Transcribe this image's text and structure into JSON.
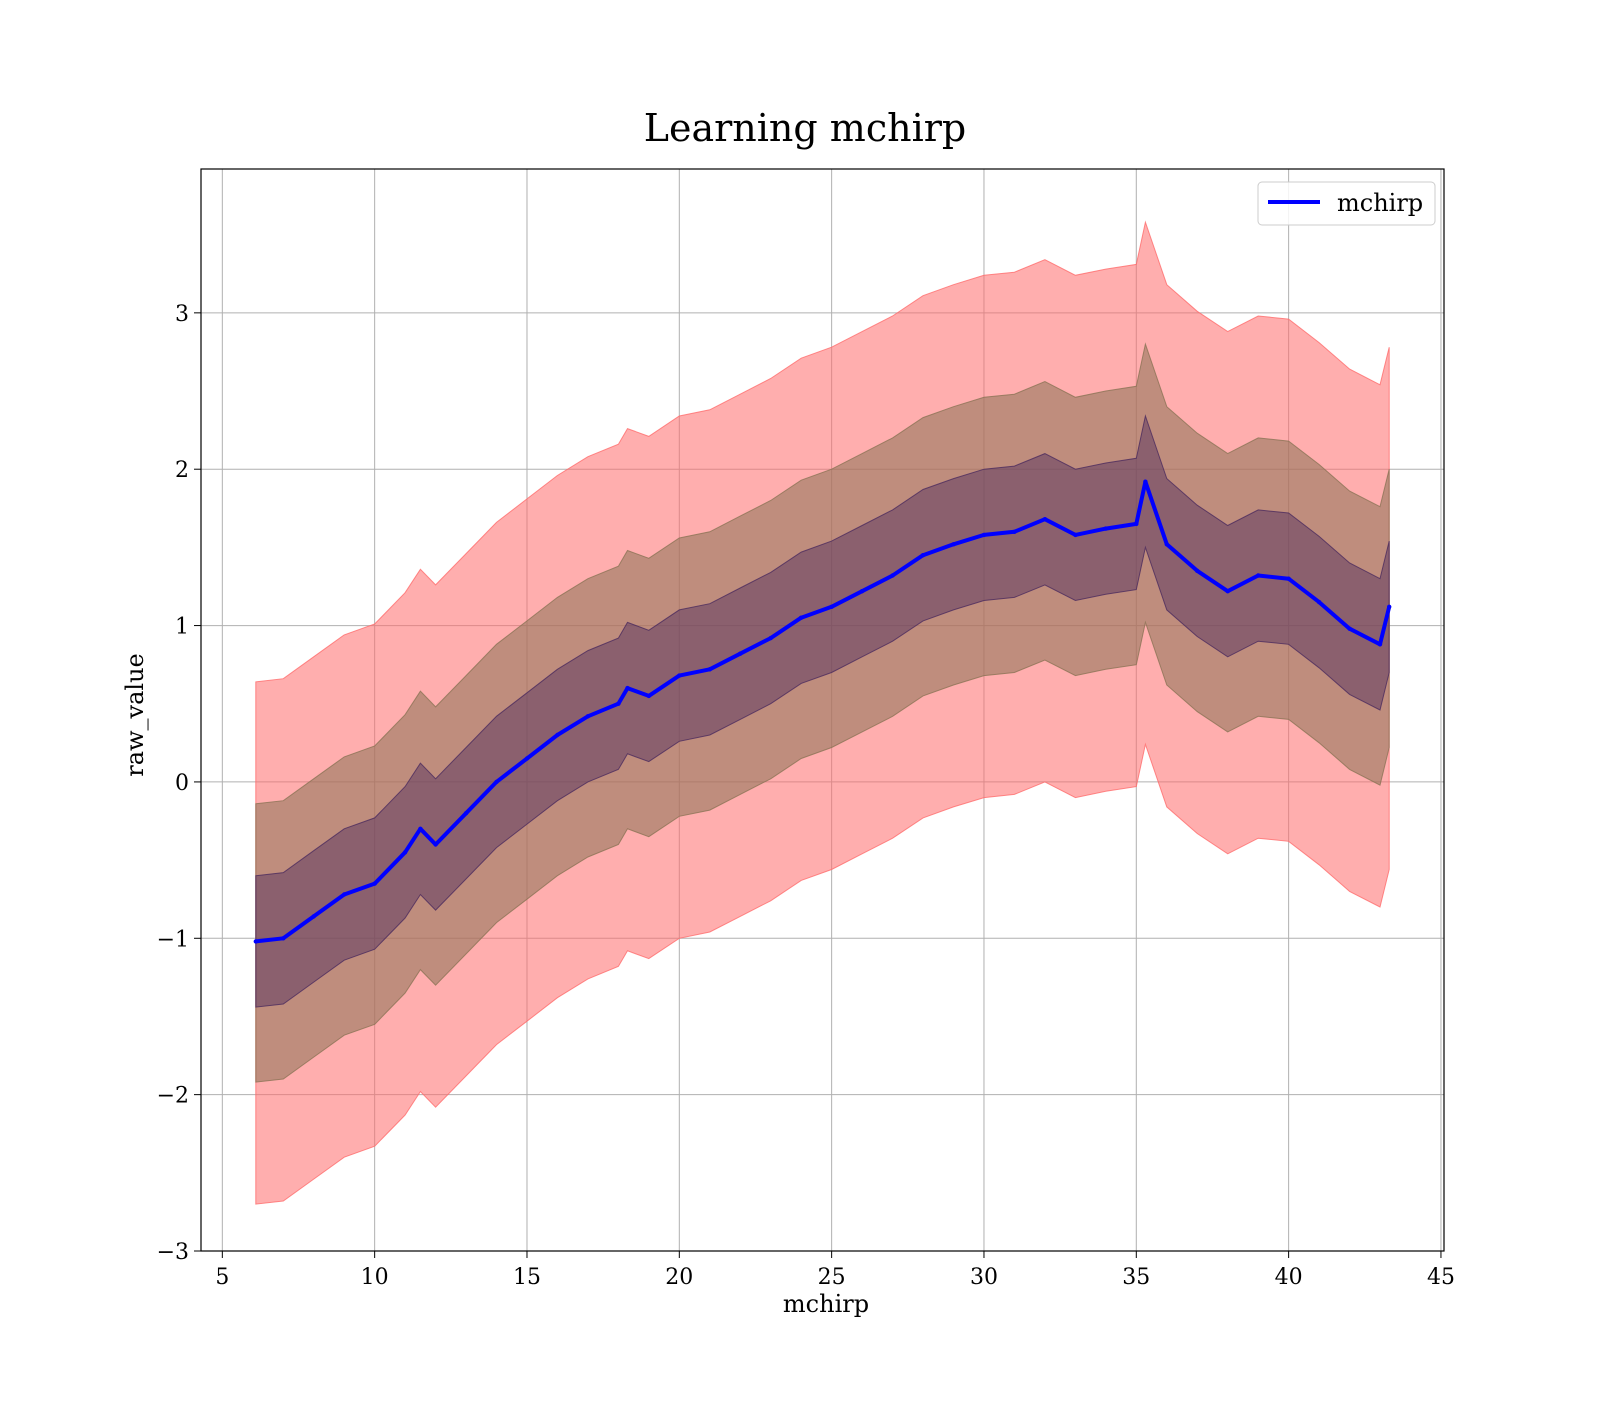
{
  "chart_data": {
    "type": "line",
    "title": "Learning mchirp",
    "xlabel": "mchirp",
    "ylabel": "raw_value",
    "xlim": [
      4.3,
      45.1
    ],
    "ylim": [
      -3.0,
      3.92
    ],
    "xticks": [
      5,
      10,
      15,
      20,
      25,
      30,
      35,
      40,
      45
    ],
    "xtick_labels": [
      "5",
      "10",
      "15",
      "20",
      "25",
      "30",
      "35",
      "40",
      "45"
    ],
    "yticks": [
      -3,
      -2,
      -1,
      0,
      1,
      2,
      3
    ],
    "ytick_labels": [
      "−3",
      "−2",
      "−1",
      "0",
      "1",
      "2",
      "3"
    ],
    "grid": true,
    "legend": {
      "position": "top-right",
      "entries": [
        "mchirp"
      ]
    },
    "colors": {
      "line": "#0000ff",
      "band_outer": "#ff6b6b",
      "band_middle": "#8b7355",
      "band_inner": "#4b2a5e"
    },
    "x": [
      6.1,
      7.0,
      8.0,
      9.0,
      10.0,
      11.0,
      11.5,
      12.0,
      13.0,
      14.0,
      15.0,
      16.0,
      17.0,
      18.0,
      18.3,
      19.0,
      20.0,
      21.0,
      22.0,
      23.0,
      24.0,
      25.0,
      26.0,
      27.0,
      28.0,
      29.0,
      30.0,
      31.0,
      32.0,
      33.0,
      34.0,
      35.0,
      35.3,
      36.0,
      37.0,
      38.0,
      39.0,
      40.0,
      41.0,
      42.0,
      43.0,
      43.3
    ],
    "series": [
      {
        "name": "mchirp",
        "values": [
          -1.02,
          -1.0,
          -0.86,
          -0.72,
          -0.65,
          -0.45,
          -0.3,
          -0.4,
          -0.2,
          0.0,
          0.15,
          0.3,
          0.42,
          0.5,
          0.6,
          0.55,
          0.68,
          0.72,
          0.82,
          0.92,
          1.05,
          1.12,
          1.22,
          1.32,
          1.45,
          1.52,
          1.58,
          1.6,
          1.68,
          1.58,
          1.62,
          1.65,
          1.92,
          1.52,
          1.35,
          1.22,
          1.32,
          1.3,
          1.15,
          0.98,
          0.88,
          1.12
        ]
      }
    ],
    "bands": [
      {
        "lower_offset": -1.68,
        "upper_offset": 1.66
      },
      {
        "lower_offset": -0.9,
        "upper_offset": 0.88
      },
      {
        "lower_offset": -0.42,
        "upper_offset": 0.42
      }
    ]
  }
}
